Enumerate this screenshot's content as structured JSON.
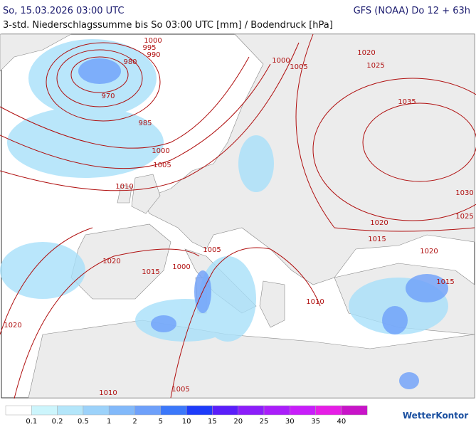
{
  "header": {
    "title": "So, 15.03.2026 03:00 UTC",
    "model": "GFS (NOAA) Do 12 + 63h",
    "subtitle": "3-std. Niederschlagssumme bis So 03:00 UTC [mm] / Bodendruck [hPa]"
  },
  "isobar_labels": [
    1000,
    995,
    990,
    980,
    970,
    985,
    1000,
    1005,
    1010,
    1000,
    1005,
    1020,
    1025,
    1035,
    1030,
    1025,
    1020,
    1015,
    1020,
    1015,
    1005,
    1000,
    1020,
    1015,
    1010,
    1020,
    1010,
    1005
  ],
  "legend": {
    "colors": [
      "#ffffff",
      "#ccf5fc",
      "#b4e6fa",
      "#9cd2fa",
      "#82b9fa",
      "#6ea0fa",
      "#3c78fa",
      "#1e3cfa",
      "#5a1efa",
      "#8c1efa",
      "#aa1efa",
      "#c81efa",
      "#e61ee6",
      "#c814c8"
    ],
    "labels": [
      "0.1",
      "0.2",
      "0.5",
      "1",
      "2",
      "5",
      "10",
      "15",
      "20",
      "25",
      "30",
      "35",
      "40"
    ]
  },
  "brand": "WetterKontor"
}
